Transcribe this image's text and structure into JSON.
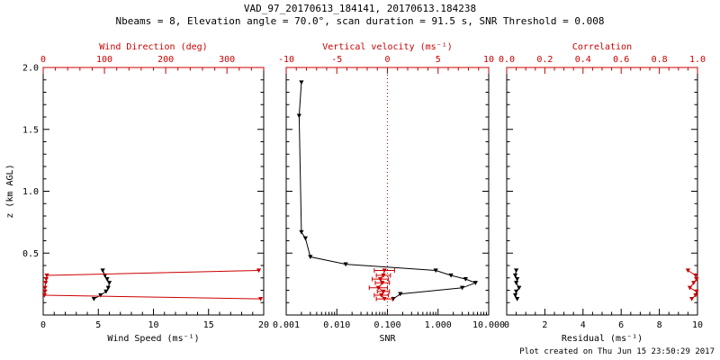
{
  "header": {
    "title": "VAD_97_20170613_184141, 20170613.184238",
    "subtitle": "Nbeams = 8, Elevation angle = 70.0°, scan duration = 91.5 s, SNR Threshold = 0.008"
  },
  "footer": {
    "created": "Plot created on Thu Jun 15 23:50:29 2017"
  },
  "colors": {
    "black": "#000000",
    "red": "#cc0000"
  },
  "y_axis": {
    "label": "z (km AGL)",
    "min": 0,
    "max": 2,
    "minor": 0.1,
    "ticks": [
      0.5,
      1.0,
      1.5,
      2.0
    ],
    "tick_labels": [
      "0.5",
      "1.0",
      "1.5",
      "2.0"
    ]
  },
  "chart_data": [
    {
      "type": "scatter",
      "name": "wind-panel",
      "y_labels": true,
      "x_bottom": {
        "label": "Wind Speed (ms⁻¹)",
        "min": 0,
        "max": 20,
        "minor": 1,
        "ticks": [
          0,
          5,
          10,
          15,
          20
        ],
        "tick_labels": [
          "0",
          "5",
          "10",
          "15",
          "20"
        ],
        "color": "black"
      },
      "x_top": {
        "label": "Wind Direction (deg)",
        "min": 0,
        "max": 360,
        "minor": 20,
        "ticks": [
          0,
          100,
          200,
          300
        ],
        "tick_labels": [
          "0",
          "100",
          "200",
          "300"
        ],
        "color": "red"
      },
      "series": [
        {
          "name": "wind-speed",
          "axis": "bottom",
          "color": "black",
          "z": [
            0.13,
            0.16,
            0.19,
            0.22,
            0.26,
            0.29,
            0.32,
            0.36
          ],
          "values": [
            4.6,
            5.2,
            5.7,
            5.9,
            6.0,
            5.8,
            5.6,
            5.4
          ]
        },
        {
          "name": "wind-direction",
          "axis": "top",
          "color": "red",
          "z": [
            0.13,
            0.16,
            0.19,
            0.22,
            0.26,
            0.29,
            0.32,
            0.36
          ],
          "values": [
            355,
            2,
            3,
            3,
            4,
            5,
            6,
            352
          ]
        }
      ]
    },
    {
      "type": "scatter",
      "name": "snr-panel",
      "y_labels": false,
      "x_bottom": {
        "label": "SNR",
        "scale": "log",
        "min": 0.001,
        "max": 10,
        "ticks": [
          0.001,
          0.01,
          0.1,
          1,
          10
        ],
        "tick_labels": [
          "0.001",
          "0.010",
          "0.100",
          "1.000",
          "10.000"
        ],
        "color": "black"
      },
      "x_top": {
        "label": "Vertical velocity (ms⁻¹)",
        "min": -10,
        "max": 10,
        "minor": 1,
        "ticks": [
          -10,
          -5,
          0,
          5,
          10
        ],
        "tick_labels": [
          "-10",
          "-5",
          "0",
          "5",
          "10"
        ],
        "color": "red"
      },
      "refline": {
        "axis": "top",
        "value": 0,
        "color": "red",
        "style": "dotted"
      },
      "series": [
        {
          "name": "snr",
          "axis": "bottom",
          "color": "black",
          "z": [
            1.88,
            1.61,
            0.67,
            0.62,
            0.47,
            0.41,
            0.36,
            0.32,
            0.29,
            0.26,
            0.22,
            0.17,
            0.13
          ],
          "values": [
            0.002,
            0.0018,
            0.002,
            0.0024,
            0.003,
            0.015,
            0.9,
            1.8,
            3.5,
            5.5,
            3.0,
            0.18,
            0.13
          ]
        },
        {
          "name": "vertical-velocity",
          "axis": "top",
          "color": "red",
          "z": [
            0.13,
            0.16,
            0.19,
            0.22,
            0.26,
            0.29,
            0.32,
            0.36
          ],
          "values": [
            -0.3,
            -0.6,
            -0.4,
            -0.9,
            -0.5,
            -0.7,
            -0.4,
            -0.3
          ],
          "xerr": [
            0.8,
            0.7,
            0.6,
            0.9,
            0.7,
            0.8,
            0.7,
            1.0
          ]
        }
      ]
    },
    {
      "type": "scatter",
      "name": "residual-panel",
      "y_labels": false,
      "x_bottom": {
        "label": "Residual (ms⁻¹)",
        "min": 0,
        "max": 10,
        "minor": 0.5,
        "ticks": [
          0,
          2,
          4,
          6,
          8,
          10
        ],
        "tick_labels": [
          "0",
          "2",
          "4",
          "6",
          "8",
          "10"
        ],
        "color": "black"
      },
      "x_top": {
        "label": "Correlation",
        "min": 0,
        "max": 1,
        "minor": 0.05,
        "ticks": [
          0,
          0.2,
          0.4,
          0.6,
          0.8,
          1.0
        ],
        "tick_labels": [
          "0.0",
          "0.2",
          "0.4",
          "0.6",
          "0.8",
          "1.0"
        ],
        "color": "red"
      },
      "series": [
        {
          "name": "residual",
          "axis": "bottom",
          "color": "black",
          "z": [
            0.13,
            0.16,
            0.19,
            0.22,
            0.26,
            0.29,
            0.32,
            0.36
          ],
          "values": [
            0.55,
            0.45,
            0.5,
            0.65,
            0.5,
            0.55,
            0.45,
            0.5
          ]
        },
        {
          "name": "correlation",
          "axis": "top",
          "color": "red",
          "z": [
            0.13,
            0.16,
            0.19,
            0.22,
            0.26,
            0.29,
            0.32,
            0.36
          ],
          "values": [
            0.97,
            0.99,
            0.995,
            0.96,
            0.98,
            0.995,
            0.99,
            0.95
          ]
        }
      ]
    }
  ]
}
